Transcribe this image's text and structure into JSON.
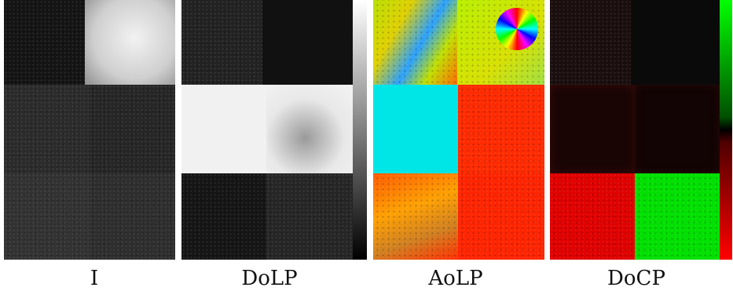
{
  "panels": [
    {
      "caption": "I"
    },
    {
      "caption": "DoLP"
    },
    {
      "caption": "AoLP"
    },
    {
      "caption": "DoCP"
    }
  ],
  "colors": {
    "aolp_cyan": "#00e6e6",
    "aolp_red": "#ff2a00",
    "docp_red": "#e00000",
    "docp_green": "#00e000"
  },
  "icons": {
    "hue_wheel": "color-wheel-icon"
  }
}
